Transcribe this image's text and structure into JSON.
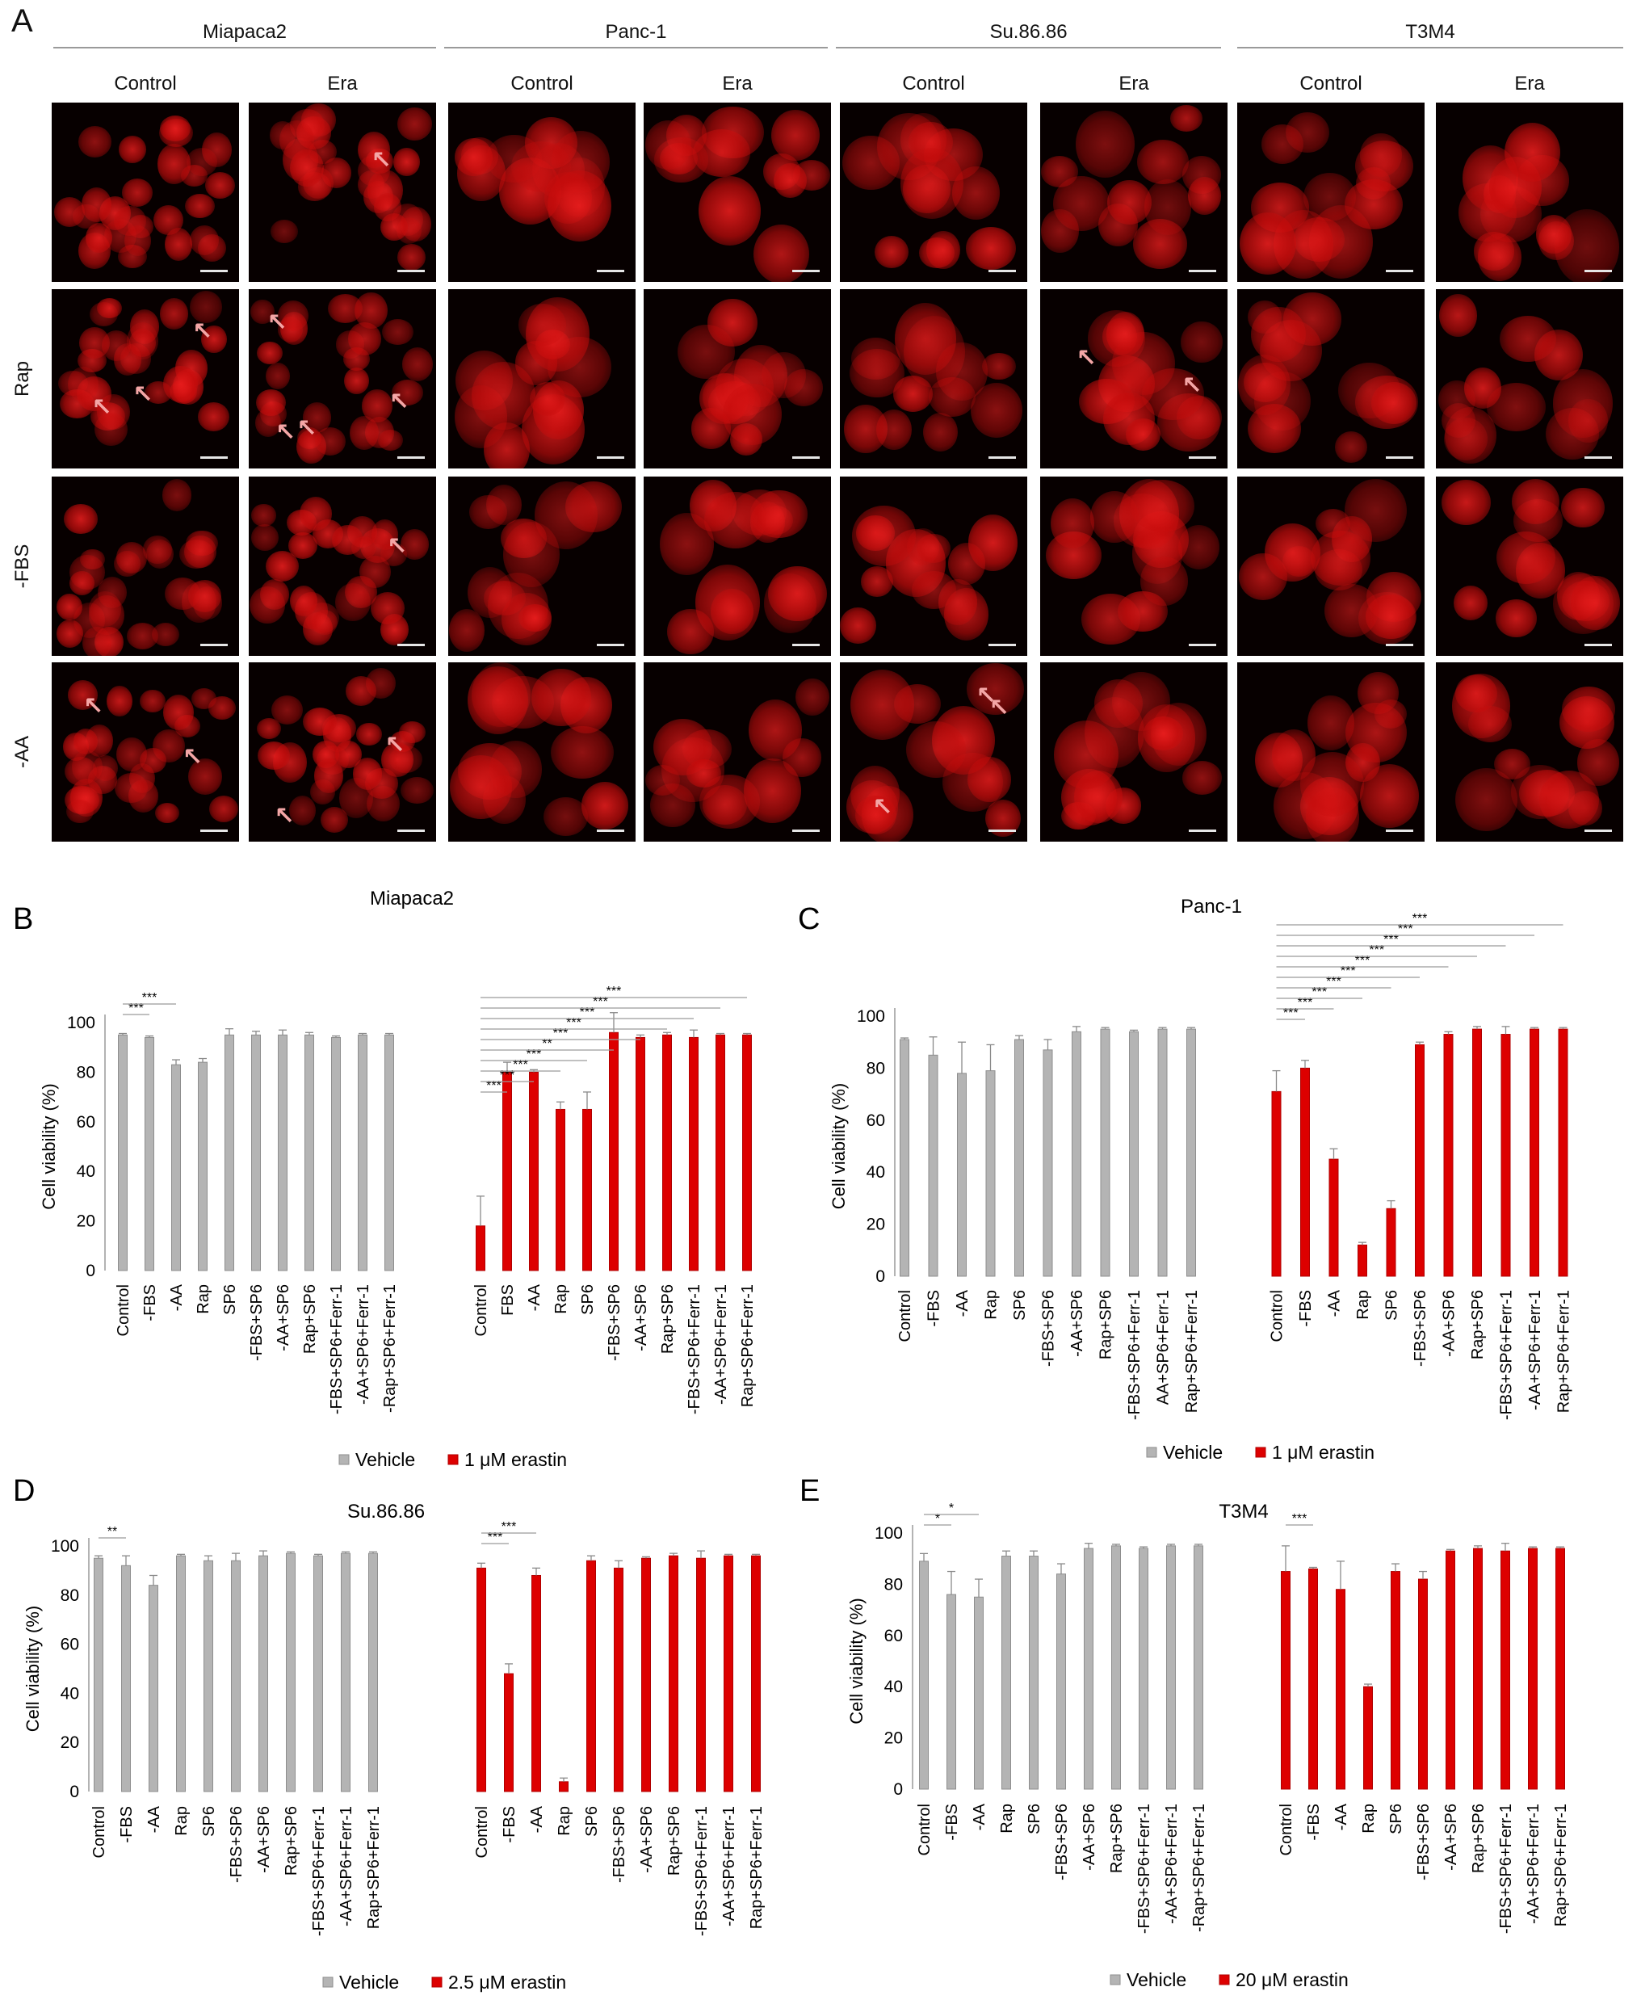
{
  "panel_a": {
    "letter": "A",
    "cell_lines": [
      "Miapaca2",
      "Panc-1",
      "Su.86.86",
      "T3M4"
    ],
    "conditions": [
      "Control",
      "Era"
    ],
    "rows": [
      "",
      "Rap",
      "-FBS",
      "-AA"
    ]
  },
  "colors": {
    "vehicle": "#b4b4b4",
    "erastin": "#dd0000",
    "fluorescence": "#d10f0f"
  },
  "chart_data": [
    {
      "id": "B",
      "letter": "B",
      "type": "bar",
      "title": "Miapaca2",
      "ylabel": "Cell viability (%)",
      "ylim": [
        0,
        100
      ],
      "yticks": [
        0,
        20,
        40,
        60,
        80,
        100
      ],
      "groups": [
        {
          "name": "Vehicle",
          "categories": [
            "Control",
            "-FBS",
            "-AA",
            "Rap",
            "SP6",
            "-FBS+SP6",
            "-AA+SP6",
            "Rap+SP6",
            "-FBS+SP6+Ferr-1",
            "-AA+SP6+Ferr-1",
            "-Rap+SP6+Ferr-1"
          ],
          "values": [
            95,
            94,
            83,
            84,
            95,
            95,
            95,
            95,
            94,
            95,
            95
          ],
          "errors": [
            0.6,
            0.6,
            2,
            1.5,
            2.5,
            1.5,
            2,
            1,
            0.6,
            0.6,
            0.6
          ]
        },
        {
          "name": "1 μM erastin",
          "categories": [
            "Control",
            "FBS",
            "-AA",
            "Rap",
            "SP6",
            "-FBS+SP6",
            "-AA+SP6",
            "Rap+SP6",
            "-FBS+SP6+Ferr-1",
            "-AA+SP6+Ferr-1",
            "Rap+SP6+Ferr-1"
          ],
          "values": [
            18,
            80,
            80,
            65,
            65,
            96,
            94,
            95,
            94,
            95,
            95
          ],
          "errors": [
            12,
            4,
            1,
            3,
            7,
            8,
            1,
            1,
            3,
            0.6,
            0.6
          ]
        }
      ],
      "significance": {
        "vehicle": [
          "***",
          "***"
        ],
        "erastin": [
          "***",
          "***",
          "***",
          "***",
          "**",
          "***",
          "***",
          "***",
          "***",
          "***"
        ]
      },
      "legend": [
        "Vehicle",
        "1 μM erastin"
      ]
    },
    {
      "id": "C",
      "letter": "C",
      "type": "bar",
      "title": "Panc-1",
      "ylabel": "Cell viability (%)",
      "ylim": [
        0,
        100
      ],
      "yticks": [
        0,
        20,
        40,
        60,
        80,
        100
      ],
      "groups": [
        {
          "name": "Vehicle",
          "categories": [
            "Control",
            "-FBS",
            "-AA",
            "Rap",
            "SP6",
            "-FBS+SP6",
            "-AA+SP6",
            "Rap+SP6",
            "-FBS+SP6+Ferr-1",
            "AA+SP6+Ferr-1",
            "Rap+SP6+Ferr-1"
          ],
          "values": [
            91,
            85,
            78,
            79,
            91,
            87,
            94,
            95,
            94,
            95,
            95
          ],
          "errors": [
            0.6,
            7,
            12,
            10,
            1.5,
            4,
            2,
            0.6,
            0.6,
            0.6,
            0.6
          ]
        },
        {
          "name": "1 μM erastin",
          "categories": [
            "Control",
            "-FBS",
            "-AA",
            "Rap",
            "SP6",
            "-FBS+SP6",
            "-AA+SP6",
            "Rap+SP6",
            "-FBS+SP6+Ferr-1",
            "-AA+SP6+Ferr-1",
            "Rap+SP6+Ferr-1"
          ],
          "values": [
            71,
            80,
            45,
            12,
            26,
            89,
            93,
            95,
            93,
            95,
            95
          ],
          "errors": [
            8,
            3,
            4,
            1,
            3,
            1,
            1,
            1,
            3,
            0.6,
            0.6
          ]
        }
      ],
      "significance": {
        "vehicle": [],
        "erastin": [
          "***",
          "***",
          "***",
          "***",
          "***",
          "***",
          "***",
          "***",
          "***",
          "***"
        ]
      },
      "legend": [
        "Vehicle",
        "1 μM erastin"
      ]
    },
    {
      "id": "D",
      "letter": "D",
      "type": "bar",
      "title": "Su.86.86",
      "ylabel": "Cell viability (%)",
      "ylim": [
        0,
        100
      ],
      "yticks": [
        0,
        20,
        40,
        60,
        80,
        100
      ],
      "groups": [
        {
          "name": "Vehicle",
          "categories": [
            "Control",
            "-FBS",
            "-AA",
            "Rap",
            "SP6",
            "-FBS+SP6",
            "-AA+SP6",
            "Rap+SP6",
            "-FBS+SP6+Ferr-1",
            "-AA+SP6+Ferr-1",
            "Rap+SP6+Ferr-1"
          ],
          "values": [
            95,
            92,
            84,
            96,
            94,
            94,
            96,
            97,
            96,
            97,
            97
          ],
          "errors": [
            1,
            4,
            4,
            0.6,
            2,
            3,
            2,
            0.6,
            0.6,
            0.6,
            0.6
          ]
        },
        {
          "name": "2.5 μM erastin",
          "categories": [
            "Control",
            "-FBS",
            "-AA",
            "Rap",
            "SP6",
            "-FBS+SP6",
            "-AA+SP6",
            "Rap+SP6",
            "-FBS+SP6+Ferr-1",
            "-AA+SP6+Ferr-1",
            "Rap+SP6+Ferr-1"
          ],
          "values": [
            91,
            48,
            88,
            4,
            94,
            91,
            95,
            96,
            95,
            96,
            96
          ],
          "errors": [
            2,
            4,
            3,
            1.5,
            2,
            3,
            0.6,
            1,
            3,
            0.6,
            0.6
          ]
        }
      ],
      "significance": {
        "vehicle": [
          "**"
        ],
        "erastin": [
          "***",
          "***"
        ]
      },
      "legend": [
        "Vehicle",
        "2.5 μM erastin"
      ]
    },
    {
      "id": "E",
      "letter": "E",
      "type": "bar",
      "title": "T3M4",
      "ylabel": "Cell viability (%)",
      "ylim": [
        0,
        100
      ],
      "yticks": [
        0,
        20,
        40,
        60,
        80,
        100
      ],
      "groups": [
        {
          "name": "Vehicle",
          "categories": [
            "Control",
            "-FBS",
            "-AA",
            "Rap",
            "SP6",
            "-FBS+SP6",
            "-AA+SP6",
            "Rap+SP6",
            "-FBS+SP6+Ferr-1",
            "-AA+SP6+Ferr-1",
            "-Rap+SP6+Ferr-1"
          ],
          "values": [
            89,
            76,
            75,
            91,
            91,
            84,
            94,
            95,
            94,
            95,
            95
          ],
          "errors": [
            3,
            9,
            7,
            2,
            2,
            4,
            2,
            0.6,
            0.6,
            0.6,
            0.6
          ]
        },
        {
          "name": "20 μM erastin",
          "categories": [
            "Control",
            "-FBS",
            "-AA",
            "Rap",
            "SP6",
            "-FBS+SP6",
            "-AA+SP6",
            "Rap+SP6",
            "-FBS+SP6+Ferr-1",
            "-AA+SP6+Ferr-1",
            "Rap+SP6+Ferr-1"
          ],
          "values": [
            85,
            86,
            78,
            40,
            85,
            82,
            93,
            94,
            93,
            94,
            94
          ],
          "errors": [
            10,
            0.6,
            11,
            1,
            3,
            3,
            0.6,
            1,
            3,
            0.6,
            0.6
          ]
        }
      ],
      "significance": {
        "vehicle": [
          "*",
          "*"
        ],
        "erastin": [
          "***"
        ]
      },
      "legend": [
        "Vehicle",
        "20 μM erastin"
      ]
    }
  ]
}
